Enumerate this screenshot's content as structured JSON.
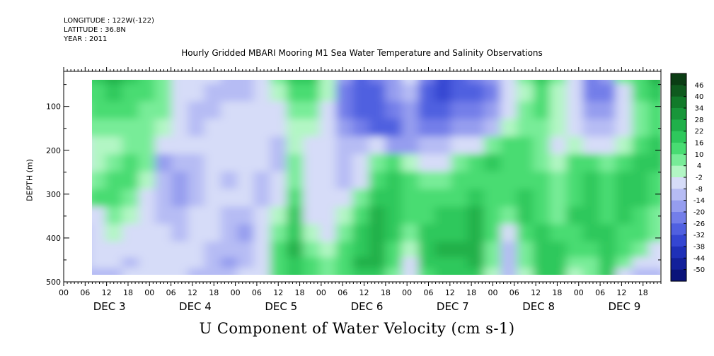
{
  "header": {
    "longitude": "LONGITUDE : 122W(-122)",
    "latitude": "LATITUDE : 36.8N",
    "year": "YEAR : 2011"
  },
  "chart_data": {
    "type": "heatmap",
    "title": "Hourly Gridded MBARI Mooring M1 Sea Water Temperature and Salinity Observations",
    "xlabel": "U Component of Water Velocity (cm s-1)",
    "ylabel": "DEPTH (m)",
    "ylim": [
      500,
      20
    ],
    "y_ticks": [
      100,
      200,
      300,
      400,
      500
    ],
    "x_hour_ticks": [
      "00",
      "06",
      "12",
      "18",
      "00",
      "06",
      "12",
      "18",
      "00",
      "06",
      "12",
      "18",
      "00",
      "06",
      "12",
      "18",
      "00",
      "06",
      "12",
      "18",
      "00",
      "06",
      "12",
      "18",
      "00",
      "06",
      "12",
      "18"
    ],
    "days": [
      "DEC  3",
      "DEC  4",
      "DEC  5",
      "DEC  6",
      "DEC  7",
      "DEC  8",
      "DEC  9"
    ],
    "x_range_hours": [
      0,
      167
    ],
    "data_start_hour": 5,
    "colorbar": {
      "labels": [
        "46",
        "40",
        "34",
        "28",
        "22",
        "16",
        "10",
        "4",
        "-2",
        "-8",
        "-14",
        "-20",
        "-26",
        "-32",
        "-38",
        "-44",
        "-50"
      ],
      "colors": [
        "#0b3d14",
        "#0f5a1e",
        "#127a2a",
        "#18963a",
        "#20b04a",
        "#2ec85c",
        "#48dc72",
        "#78ec98",
        "#b2f6c4",
        "#d6dcf8",
        "#b6bcf4",
        "#959def",
        "#737ee9",
        "#5060e0",
        "#3446d2",
        "#1f30b8",
        "#13209a",
        "#0a147a"
      ]
    },
    "velocity_cm_s": [
      [
        10,
        15,
        20,
        18,
        12,
        5,
        -5,
        -5,
        -10,
        -15,
        -12,
        -10,
        5,
        18,
        15,
        0,
        -22,
        -30,
        -25,
        -18,
        -5,
        -28,
        -35,
        -30,
        -25,
        -20,
        -5,
        5,
        15,
        5,
        -10,
        -25,
        -22,
        5,
        10,
        20
      ],
      [
        10,
        12,
        15,
        12,
        8,
        5,
        -8,
        -10,
        -12,
        -14,
        -12,
        -10,
        -3,
        8,
        10,
        0,
        -26,
        -34,
        -32,
        -22,
        -15,
        -30,
        -35,
        -32,
        -30,
        -24,
        -10,
        0,
        10,
        0,
        -10,
        -26,
        -24,
        -5,
        10,
        15
      ],
      [
        6,
        10,
        10,
        8,
        5,
        2,
        -10,
        -12,
        -12,
        -10,
        -8,
        -8,
        -5,
        3,
        5,
        -5,
        -28,
        -32,
        -30,
        -28,
        -20,
        -30,
        -32,
        -28,
        -26,
        -20,
        -8,
        2,
        8,
        0,
        -8,
        -22,
        -18,
        -8,
        5,
        10
      ],
      [
        2,
        5,
        5,
        5,
        2,
        -2,
        -10,
        -12,
        -10,
        -5,
        -5,
        -5,
        -8,
        0,
        0,
        -5,
        -22,
        -28,
        -30,
        -30,
        -22,
        -24,
        -25,
        -22,
        -20,
        -12,
        0,
        5,
        5,
        -3,
        -5,
        -15,
        -12,
        -5,
        5,
        10
      ],
      [
        -5,
        0,
        0,
        5,
        5,
        -10,
        -8,
        -10,
        -8,
        -8,
        -5,
        -8,
        -12,
        -2,
        -5,
        -5,
        -15,
        -15,
        -10,
        -18,
        -18,
        -15,
        -12,
        -10,
        -5,
        5,
        12,
        8,
        5,
        -5,
        0,
        -5,
        -5,
        0,
        10,
        15
      ],
      [
        -5,
        -2,
        2,
        8,
        5,
        -18,
        -15,
        -12,
        -6,
        -10,
        -5,
        -8,
        -12,
        5,
        -5,
        -5,
        -15,
        -10,
        5,
        10,
        0,
        -10,
        -5,
        5,
        10,
        15,
        10,
        10,
        5,
        0,
        10,
        12,
        5,
        10,
        15,
        15
      ],
      [
        0,
        5,
        8,
        10,
        0,
        -15,
        -20,
        -14,
        -8,
        -12,
        -8,
        -12,
        -8,
        5,
        -8,
        -8,
        -12,
        -5,
        10,
        15,
        8,
        5,
        5,
        10,
        12,
        12,
        10,
        12,
        8,
        5,
        12,
        15,
        8,
        15,
        18,
        12
      ],
      [
        5,
        8,
        10,
        5,
        -5,
        -12,
        -18,
        -12,
        -5,
        -10,
        -10,
        -15,
        -5,
        10,
        -10,
        -8,
        -5,
        5,
        15,
        18,
        10,
        10,
        10,
        12,
        15,
        10,
        8,
        15,
        10,
        5,
        12,
        18,
        10,
        18,
        15,
        10
      ],
      [
        -10,
        -5,
        5,
        0,
        -5,
        -12,
        -15,
        -10,
        -8,
        -12,
        -14,
        -10,
        0,
        15,
        -5,
        -5,
        0,
        10,
        20,
        18,
        8,
        12,
        15,
        15,
        20,
        10,
        5,
        15,
        10,
        5,
        15,
        18,
        12,
        15,
        12,
        5
      ],
      [
        -15,
        -10,
        0,
        -5,
        -8,
        -10,
        -15,
        -10,
        -10,
        -15,
        -18,
        -8,
        5,
        18,
        0,
        -5,
        5,
        15,
        20,
        15,
        5,
        15,
        18,
        18,
        22,
        8,
        -5,
        10,
        15,
        10,
        12,
        15,
        15,
        12,
        8,
        5
      ],
      [
        -12,
        -8,
        -5,
        -10,
        -10,
        -8,
        -10,
        -8,
        -12,
        -15,
        -15,
        -5,
        8,
        20,
        5,
        0,
        8,
        18,
        22,
        12,
        0,
        18,
        20,
        20,
        22,
        5,
        -12,
        5,
        15,
        15,
        10,
        10,
        18,
        10,
        5,
        -5
      ],
      [
        -15,
        -10,
        -10,
        -12,
        -10,
        -5,
        -8,
        -10,
        -15,
        -18,
        -12,
        -5,
        10,
        18,
        8,
        5,
        10,
        20,
        20,
        10,
        -5,
        15,
        18,
        18,
        20,
        2,
        -15,
        5,
        18,
        15,
        5,
        5,
        15,
        5,
        -5,
        -10
      ],
      [
        -12,
        -15,
        -12,
        -10,
        -8,
        -8,
        -10,
        -12,
        -15,
        -15,
        -10,
        -5,
        12,
        15,
        8,
        5,
        10,
        18,
        18,
        5,
        -8,
        12,
        15,
        15,
        18,
        0,
        -15,
        0,
        18,
        15,
        0,
        5,
        15,
        -5,
        -12,
        -15
      ]
    ],
    "velocity_depth_rows_m": [
      30,
      70,
      110,
      150,
      190,
      230,
      270,
      310,
      350,
      390,
      430,
      460,
      480
    ],
    "velocity_column_hours": "every 4.6 h from hour 5 to hour 166"
  }
}
